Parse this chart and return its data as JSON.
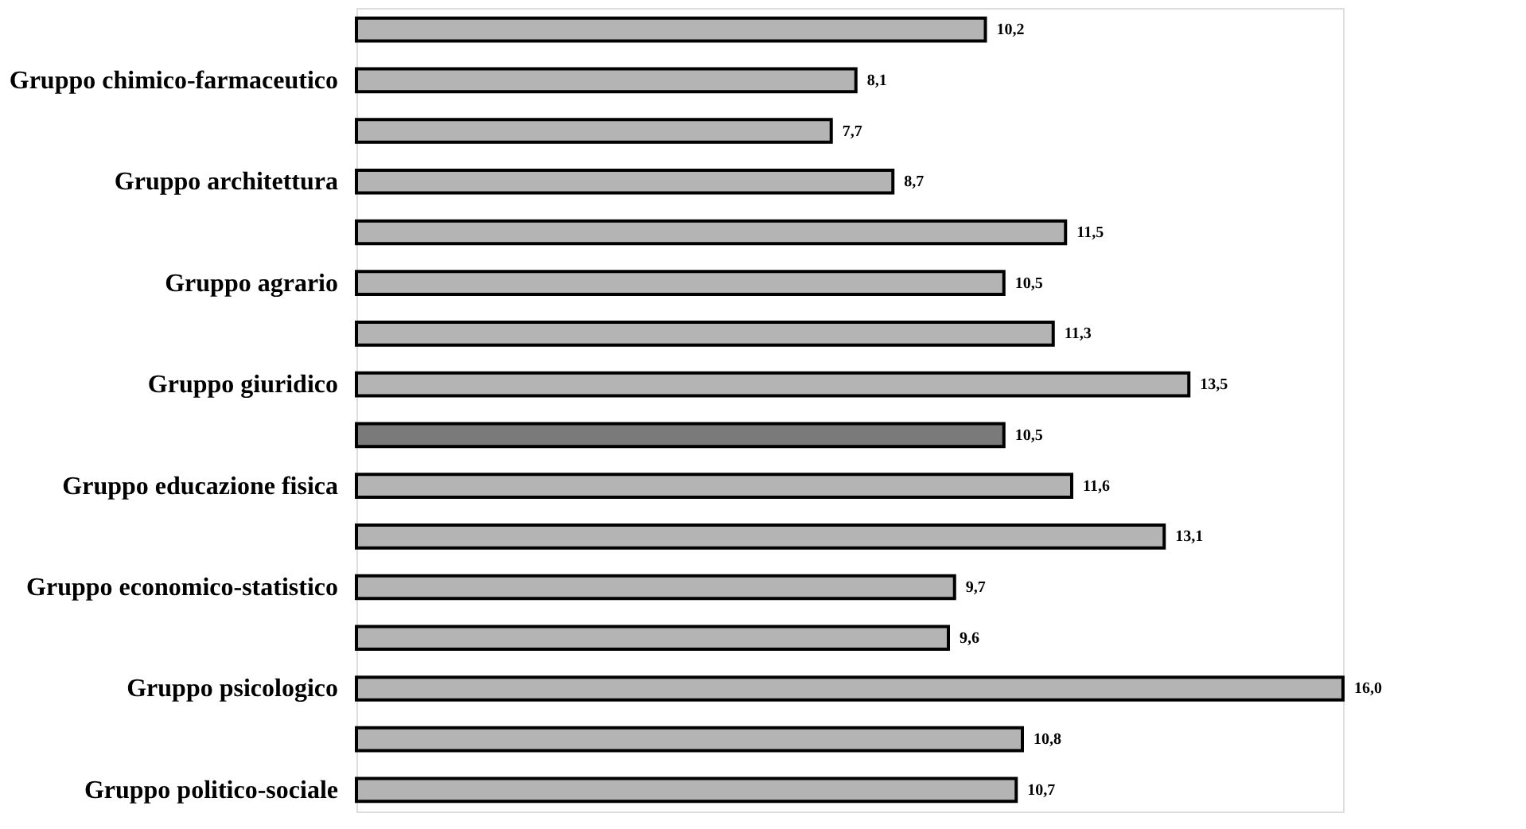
{
  "chart_data": {
    "type": "bar",
    "orientation": "horizontal",
    "categories": [
      null,
      "Gruppo chimico-farmaceutico",
      null,
      "Gruppo architettura",
      null,
      "Gruppo agrario",
      null,
      "Gruppo giuridico",
      null,
      "Gruppo educazione fisica",
      null,
      "Gruppo economico-statistico",
      null,
      "Gruppo psicologico",
      null,
      "Gruppo politico-sociale"
    ],
    "values": [
      10.2,
      8.1,
      7.7,
      8.7,
      11.5,
      10.5,
      11.3,
      13.5,
      10.5,
      11.6,
      13.1,
      9.7,
      9.6,
      16.0,
      10.8,
      10.7
    ],
    "value_labels": [
      "10,2",
      "8,1",
      "7,7",
      "8,7",
      "11,5",
      "10,5",
      "11,3",
      "13,5",
      "10,5",
      "11,6",
      "13,1",
      "9,7",
      "9,6",
      "16,0",
      "10,8",
      "10,7"
    ],
    "colors": [
      "#b4b4b4",
      "#b4b4b4",
      "#b4b4b4",
      "#b4b4b4",
      "#b4b4b4",
      "#b4b4b4",
      "#b4b4b4",
      "#b4b4b4",
      "#7a7a7a",
      "#b4b4b4",
      "#b4b4b4",
      "#b4b4b4",
      "#b4b4b4",
      "#b4b4b4",
      "#b4b4b4",
      "#b4b4b4"
    ],
    "data_labels": false
  }
}
